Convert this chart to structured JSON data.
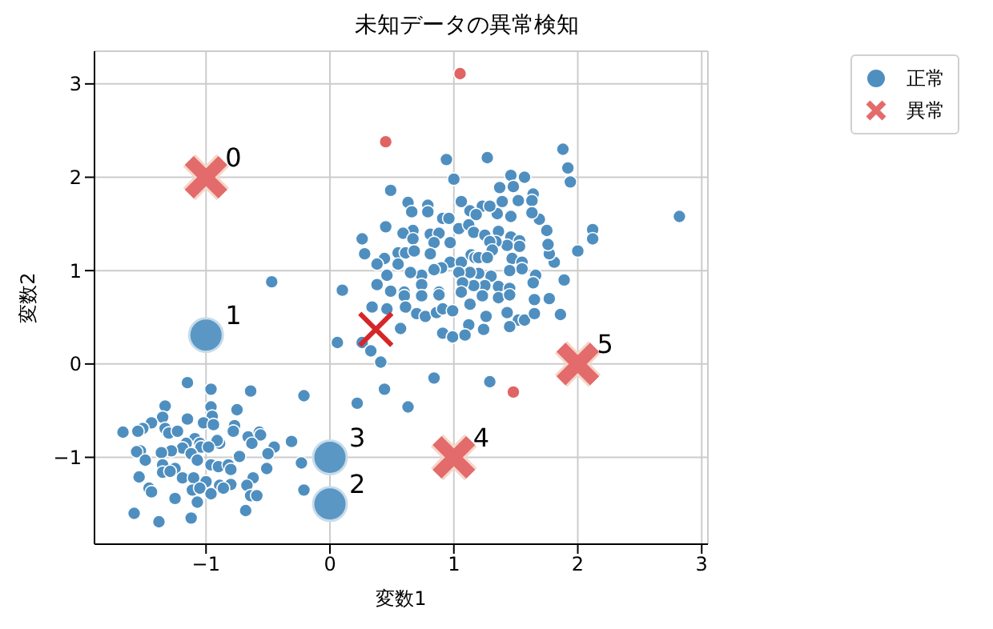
{
  "chart_data": {
    "type": "scatter",
    "title": "未知データの異常検知",
    "xlabel": "変数1",
    "ylabel": "変数2",
    "xlim": [
      -1.9,
      3.05
    ],
    "ylim": [
      -1.93,
      3.35
    ],
    "xticks": [
      {
        "value": -1,
        "label": "−1"
      },
      0,
      1,
      2,
      3
    ],
    "yticks": [
      {
        "value": -1,
        "label": "−1"
      },
      0,
      1,
      2,
      3
    ],
    "grid": true,
    "legend": "top right",
    "series": [
      {
        "name": "正常",
        "color": "#4f8fc0",
        "marker": "circle",
        "x": [
          0.94,
          1.27,
          1.88,
          1.92,
          1.94,
          1.0,
          0.49,
          1.46,
          1.57,
          1.37,
          1.48,
          1.64,
          1.63,
          1.52,
          1.39,
          1.06,
          0.63,
          0.79,
          0.66,
          0.79,
          0.45,
          0.26,
          0.28,
          2.82,
          2.12,
          2.12,
          2.0,
          1.89,
          1.81,
          1.77,
          1.76,
          1.75,
          1.69,
          1.63,
          1.46,
          1.35,
          1.23,
          1.29,
          1.13,
          0.91,
          0.96,
          1.18,
          0.67,
          0.59,
          0.81,
          0.88,
          1.04,
          1.12,
          1.16,
          1.25,
          1.36,
          1.46,
          1.53,
          1.53,
          1.43,
          1.34,
          1.29,
          1.31,
          0.97,
          0.84,
          0.67,
          0.55,
          0.61,
          0.68,
          0.81,
          0.97,
          1.06,
          1.14,
          1.17,
          1.2,
          1.27,
          1.47,
          1.55,
          1.55,
          1.45,
          1.3,
          1.2,
          1.13,
          1.04,
          0.9,
          0.84,
          0.74,
          0.65,
          0.55,
          0.44,
          0.38,
          0.46,
          0.38,
          0.1,
          1.66,
          1.64,
          1.36,
          1.45,
          1.25,
          1.16,
          1.07,
          0.88,
          0.74,
          0.6,
          0.49,
          0.6,
          0.88,
          0.74,
          1.06,
          1.23,
          1.36,
          1.45,
          1.65,
          1.77,
          0.34,
          0.46,
          0.61,
          0.7,
          0.77,
          0.86,
          0.91,
          0.99,
          1.13,
          1.26,
          1.43,
          1.52,
          1.57,
          1.65,
          1.86,
          1.12,
          1.24,
          1.45,
          0.91,
          0.99,
          1.09,
          0.57,
          0.06,
          0.26,
          0.33,
          0.41,
          0.44,
          0.22,
          0.63,
          0.84,
          1.29,
          -0.21,
          -0.31,
          -0.23,
          -0.21,
          -0.47,
          -1.15,
          -0.96,
          -0.64,
          -1.33,
          -0.96,
          -0.75,
          -1.35,
          -1.15,
          -0.95,
          -1.02,
          -0.94,
          -1.44,
          -1.51,
          -1.55,
          -1.67,
          -1.33,
          -1.3,
          -1.23,
          -0.77,
          -0.78,
          -0.66,
          -0.57,
          -0.56,
          -0.63,
          -0.45,
          -0.5,
          -0.51,
          -0.73,
          -0.89,
          -0.91,
          -1.09,
          -1.05,
          -1.16,
          -1.04,
          -0.98,
          -1.19,
          -1.28,
          -1.53,
          -1.56,
          -1.49,
          -1.36,
          -1.12,
          -1.07,
          -0.96,
          -0.9,
          -0.82,
          -0.8,
          -1.35,
          -1.25,
          -1.35,
          -1.29,
          -1.54,
          -1.19,
          -1.1,
          -1.0,
          -0.89,
          -0.8,
          -0.62,
          -0.67,
          -1.46,
          -1.44,
          -1.11,
          -1.05,
          -0.96,
          -0.86,
          -0.64,
          -0.59,
          -1.25,
          -1.07,
          -0.68,
          -1.58,
          -1.38,
          -1.12
        ],
        "values": [
          2.19,
          2.21,
          2.3,
          2.1,
          1.95,
          1.98,
          1.86,
          2.02,
          2.0,
          1.89,
          1.9,
          1.82,
          1.75,
          1.75,
          1.74,
          1.74,
          1.73,
          1.7,
          1.63,
          1.63,
          1.47,
          1.34,
          1.18,
          1.58,
          1.44,
          1.34,
          1.21,
          0.9,
          1.09,
          1.18,
          1.28,
          1.43,
          1.55,
          1.62,
          1.58,
          1.61,
          1.69,
          1.69,
          1.64,
          1.56,
          1.56,
          1.6,
          1.43,
          1.4,
          1.39,
          1.4,
          1.45,
          1.49,
          1.41,
          1.38,
          1.42,
          1.36,
          1.32,
          1.26,
          1.27,
          1.31,
          1.31,
          1.22,
          1.3,
          1.3,
          1.34,
          1.19,
          1.19,
          1.21,
          1.18,
          1.09,
          1.09,
          1.17,
          1.14,
          1.14,
          1.14,
          1.13,
          1.09,
          1.02,
          1.0,
          0.94,
          0.97,
          0.98,
          0.98,
          1.03,
          1.01,
          0.95,
          0.98,
          1.07,
          1.13,
          1.07,
          0.95,
          0.85,
          0.79,
          0.95,
          0.87,
          0.83,
          0.81,
          0.84,
          0.84,
          0.87,
          0.77,
          0.85,
          0.77,
          0.78,
          0.73,
          0.74,
          0.73,
          0.77,
          0.73,
          0.71,
          0.74,
          0.69,
          0.7,
          0.61,
          0.59,
          0.61,
          0.54,
          0.51,
          0.55,
          0.59,
          0.57,
          0.64,
          0.51,
          0.55,
          0.47,
          0.47,
          0.54,
          0.53,
          0.42,
          0.37,
          0.4,
          0.33,
          0.29,
          0.31,
          0.38,
          0.23,
          0.23,
          0.14,
          0.02,
          -0.27,
          -0.42,
          -0.46,
          -0.15,
          -0.19,
          -0.34,
          -0.83,
          -1.06,
          -1.35,
          0.88,
          -0.2,
          -0.27,
          -0.29,
          -0.45,
          -0.46,
          -0.49,
          -0.57,
          -0.59,
          -0.56,
          -0.63,
          -0.65,
          -0.63,
          -0.69,
          -0.72,
          -0.73,
          -0.69,
          -0.74,
          -0.72,
          -0.66,
          -0.72,
          -0.78,
          -0.73,
          -0.76,
          -0.85,
          -0.89,
          -0.96,
          -1.12,
          -0.99,
          -0.85,
          -0.82,
          -0.8,
          -0.85,
          -0.85,
          -0.89,
          -0.89,
          -0.9,
          -0.93,
          -0.93,
          -0.94,
          -1.03,
          -0.95,
          -0.96,
          -1.03,
          -1.08,
          -1.1,
          -1.08,
          -1.13,
          -1.08,
          -1.12,
          -1.16,
          -1.15,
          -1.21,
          -1.22,
          -1.22,
          -1.26,
          -1.3,
          -1.29,
          -1.22,
          -1.3,
          -1.33,
          -1.37,
          -1.35,
          -1.33,
          -1.39,
          -1.33,
          -1.41,
          -1.41,
          -1.44,
          -1.48,
          -1.57,
          -1.6,
          -1.69,
          -1.65
        ]
      },
      {
        "color": "#e06464",
        "marker": "circle",
        "x": [
          1.05,
          0.45,
          1.48
        ],
        "values": [
          3.11,
          2.38,
          -0.3
        ]
      },
      {
        "color": "#5b97c4",
        "marker": "circle",
        "x": [
          -1,
          0,
          0
        ],
        "values": [
          0.31,
          -1.5,
          -1
        ]
      },
      {
        "name": "異常",
        "color": "#e36b6b",
        "marker": "cross",
        "x": [
          -1,
          1,
          2
        ],
        "values": [
          2,
          -1,
          0
        ]
      },
      {
        "color": "#d62728",
        "marker": "cross",
        "x": [
          0.37
        ],
        "values": [
          0.37
        ]
      }
    ],
    "annotations": [
      {
        "text": "0",
        "x": -1,
        "y": 2
      },
      {
        "text": "1",
        "x": -1,
        "y": 0.31
      },
      {
        "text": "2",
        "x": 0,
        "y": -1.5
      },
      {
        "text": "3",
        "x": 0,
        "y": -1
      },
      {
        "text": "4",
        "x": 1,
        "y": -1
      },
      {
        "text": "5",
        "x": 2,
        "y": 0
      }
    ]
  }
}
